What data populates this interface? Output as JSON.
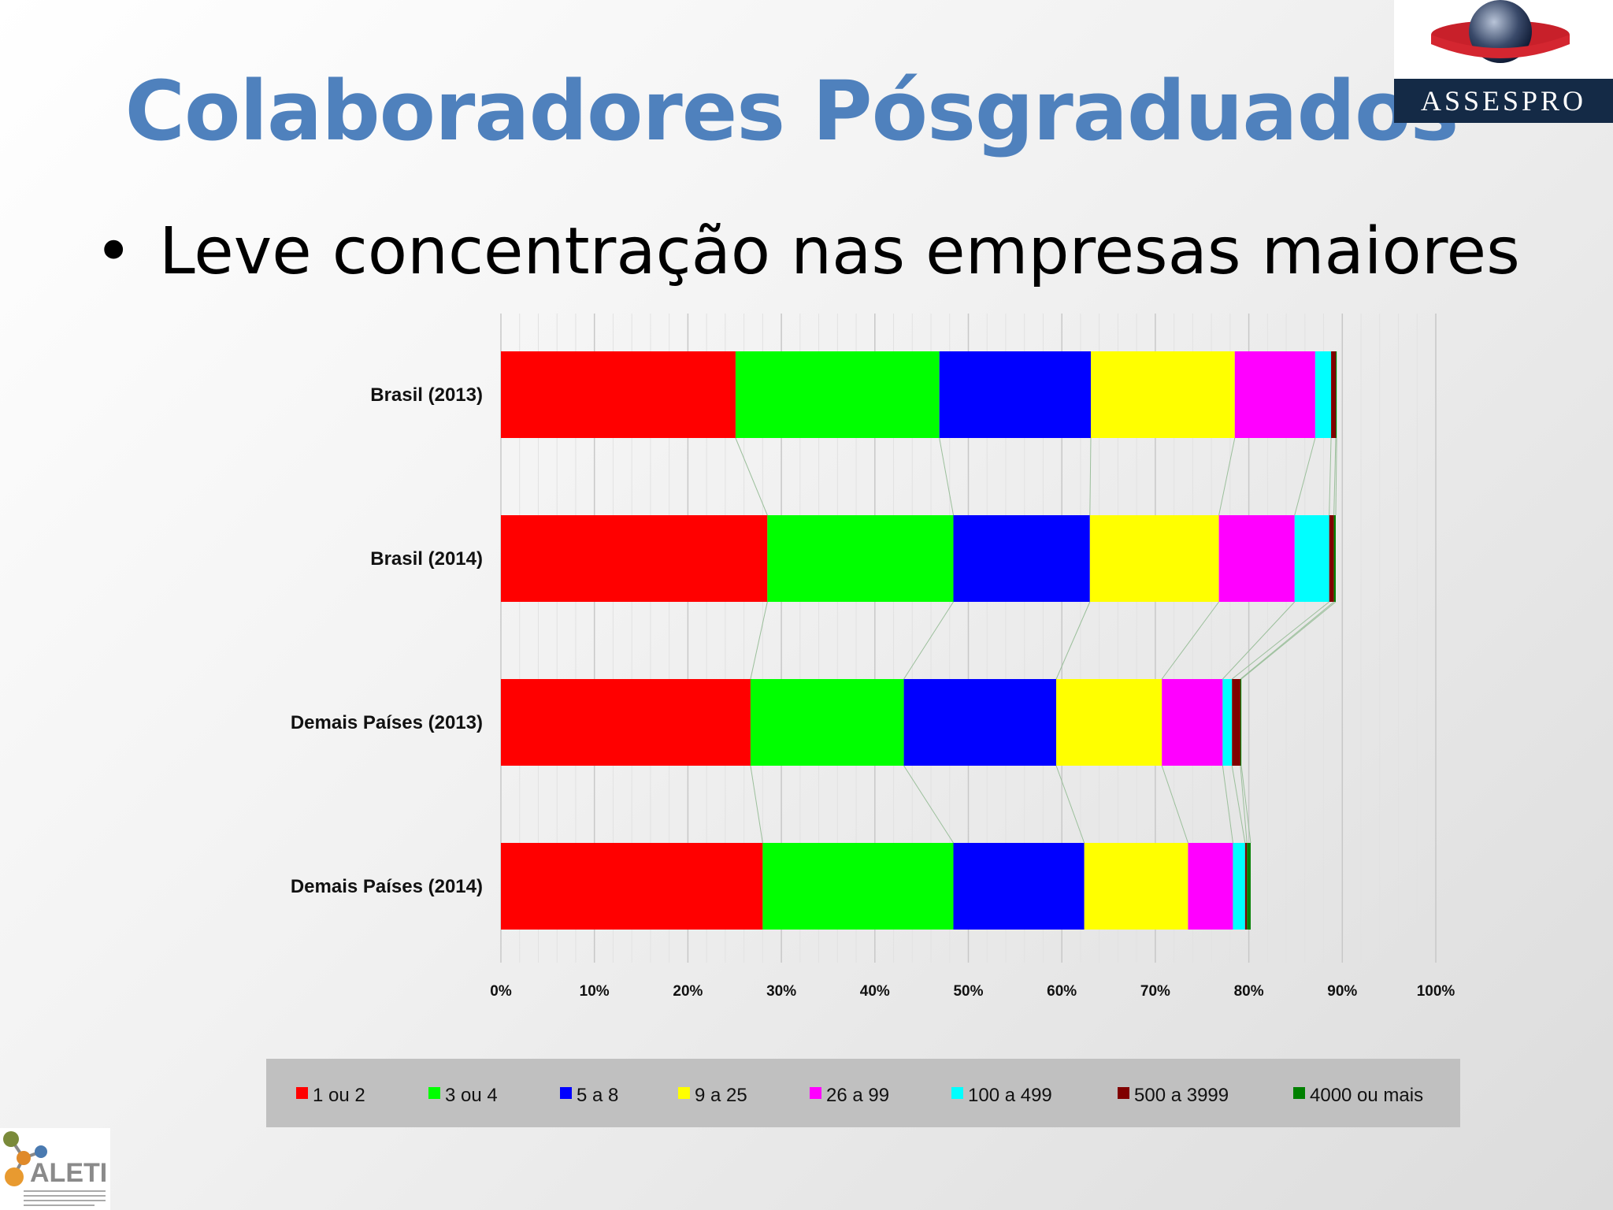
{
  "title": "Colaboradores Pósgraduados",
  "bullet": {
    "symbol": "•",
    "text": "Leve concentração nas empresas maiores"
  },
  "logos": {
    "assespro_text": "ASSESPRO",
    "aleti_text": "ALETI"
  },
  "colors": {
    "title": "#4f81bd",
    "background": "#eeeeee",
    "legend_background": "#c0c0c0",
    "series": [
      "#ff0000",
      "#00ff00",
      "#0000ff",
      "#ffff00",
      "#ff00ff",
      "#00ffff",
      "#800000",
      "#008000"
    ]
  },
  "chart_data": {
    "type": "bar",
    "orientation": "horizontal",
    "stacked": true,
    "categories": [
      "Brasil (2013)",
      "Brasil (2014)",
      "Demais Países (2013)",
      "Demais Países (2014)"
    ],
    "series": [
      {
        "name": "1 ou 2",
        "values": [
          25.1,
          28.5,
          26.7,
          28.0
        ]
      },
      {
        "name": "3 ou 4",
        "values": [
          21.8,
          19.9,
          16.4,
          20.4
        ]
      },
      {
        "name": "5 a 8",
        "values": [
          16.2,
          14.6,
          16.3,
          14.0
        ]
      },
      {
        "name": "9 a 25",
        "values": [
          15.4,
          13.8,
          11.3,
          11.1
        ]
      },
      {
        "name": "26 a 99",
        "values": [
          8.6,
          8.1,
          6.5,
          4.8
        ]
      },
      {
        "name": "100 a 499",
        "values": [
          1.7,
          3.7,
          1.0,
          1.3
        ]
      },
      {
        "name": "500 a 3999",
        "values": [
          0.5,
          0.5,
          0.9,
          0.2
        ]
      },
      {
        "name": "4000 ou mais",
        "values": [
          0.1,
          0.2,
          0.1,
          0.4
        ]
      }
    ],
    "x_ticks": [
      "0%",
      "10%",
      "20%",
      "30%",
      "40%",
      "50%",
      "60%",
      "70%",
      "80%",
      "90%",
      "100%"
    ],
    "xlim": [
      0,
      100
    ],
    "grid": true,
    "series_lines": true,
    "legend_position": "bottom"
  }
}
